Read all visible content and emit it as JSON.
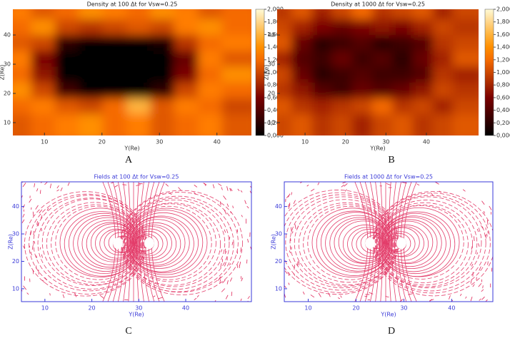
{
  "chart_data": [
    {
      "type": "heatmap",
      "label": "A",
      "title": "Density at 100 Δt for Vsw=0.25",
      "xlabel": "Y(Re)",
      "ylabel": "Z(Re)",
      "xlim": [
        4.5,
        46
      ],
      "ylim": [
        5.6,
        48.8
      ],
      "xticks": [
        10,
        20,
        30,
        40
      ],
      "yticks": [
        10,
        20,
        30,
        40
      ],
      "z": [
        [
          1.3,
          1.1,
          1.2,
          1.4,
          1.3,
          1.2,
          1.4,
          1.3,
          1.1,
          1.2
        ],
        [
          1.2,
          1.4,
          1.0,
          0.9,
          1.0,
          1.1,
          1.0,
          1.3,
          1.4,
          1.2
        ],
        [
          1.1,
          1.0,
          0.2,
          0.0,
          0.0,
          0.0,
          0.1,
          0.9,
          1.2,
          1.3
        ],
        [
          1.3,
          0.6,
          0.0,
          0.0,
          0.0,
          0.0,
          0.0,
          0.5,
          1.3,
          1.1
        ],
        [
          1.2,
          0.7,
          0.0,
          0.0,
          0.0,
          0.0,
          0.0,
          0.6,
          1.2,
          1.4
        ],
        [
          1.4,
          1.0,
          0.3,
          0.0,
          0.0,
          0.0,
          0.2,
          1.0,
          1.3,
          1.2
        ],
        [
          1.2,
          1.3,
          1.1,
          1.0,
          1.2,
          1.6,
          1.1,
          1.3,
          1.2,
          1.0
        ],
        [
          1.1,
          1.2,
          1.3,
          1.4,
          1.2,
          1.3,
          1.1,
          1.2,
          1.3,
          1.1
        ]
      ],
      "colorbar": {
        "lim": [
          0,
          2
        ],
        "ticks": [
          {
            "value": 2.0,
            "label": "2,000"
          },
          {
            "value": 1.8,
            "label": "1,800"
          },
          {
            "value": 1.6,
            "label": "1,600"
          },
          {
            "value": 1.4,
            "label": "1,400"
          },
          {
            "value": 1.2,
            "label": "1,200"
          },
          {
            "value": 1.0,
            "label": "1,000"
          },
          {
            "value": 0.8,
            "label": "0,800"
          },
          {
            "value": 0.6,
            "label": "0,600"
          },
          {
            "value": 0.4,
            "label": "0,400"
          },
          {
            "value": 0.2,
            "label": "0,200"
          },
          {
            "value": 0.0,
            "label": "0,000"
          }
        ]
      }
    },
    {
      "type": "heatmap",
      "label": "B",
      "title": "Density at 1000 Δt for Vsw=0.25",
      "xlabel": "Y(Re)",
      "ylabel": "Z(Re)",
      "xlim": [
        3.1,
        52.9
      ],
      "ylim": [
        5.6,
        48.8
      ],
      "xticks": [
        10,
        20,
        30,
        40
      ],
      "yticks": [
        10,
        20,
        30,
        40
      ],
      "z": [
        [
          0.9,
          1.1,
          0.8,
          1.0,
          1.2,
          0.9,
          1.0,
          1.1,
          0.8,
          1.0
        ],
        [
          1.0,
          0.8,
          0.6,
          0.5,
          0.6,
          0.7,
          0.6,
          0.8,
          1.0,
          0.9
        ],
        [
          1.1,
          0.5,
          0.2,
          0.3,
          0.4,
          0.2,
          0.3,
          0.4,
          0.9,
          1.0
        ],
        [
          0.8,
          0.4,
          0.3,
          0.5,
          0.3,
          0.4,
          0.2,
          0.5,
          0.8,
          1.1
        ],
        [
          1.0,
          0.5,
          0.2,
          0.3,
          0.4,
          0.3,
          0.3,
          0.4,
          0.9,
          0.8
        ],
        [
          0.9,
          0.7,
          0.4,
          0.3,
          0.5,
          0.4,
          0.5,
          0.7,
          1.0,
          0.9
        ],
        [
          1.1,
          0.9,
          0.8,
          0.9,
          1.0,
          1.2,
          0.9,
          1.0,
          0.8,
          1.0
        ],
        [
          1.0,
          1.1,
          0.9,
          1.0,
          0.8,
          1.0,
          1.1,
          0.9,
          1.0,
          1.1
        ]
      ],
      "colorbar": {
        "lim": [
          0,
          2
        ],
        "ticks": [
          {
            "value": 2.0,
            "label": "2,000"
          },
          {
            "value": 1.8,
            "label": "1,800"
          },
          {
            "value": 1.6,
            "label": "1,600"
          },
          {
            "value": 1.4,
            "label": "1,400"
          },
          {
            "value": 1.2,
            "label": "1,200"
          },
          {
            "value": 1.0,
            "label": "1,000"
          },
          {
            "value": 0.8,
            "label": "0,800"
          },
          {
            "value": 0.6,
            "label": "0,600"
          },
          {
            "value": 0.4,
            "label": "0,400"
          },
          {
            "value": 0.2,
            "label": "0,200"
          },
          {
            "value": 0.0,
            "label": "0,000"
          }
        ]
      }
    },
    {
      "type": "streamline",
      "label": "C",
      "title": "Fields at 100 Δt for Vsw=0.25",
      "xlabel": "Y(Re)",
      "ylabel": "Z(Re)",
      "xlim": [
        5,
        54
      ],
      "ylim": [
        5.3,
        49
      ],
      "xticks": [
        10,
        20,
        30,
        40
      ],
      "yticks": [
        10,
        20,
        30,
        40
      ],
      "color": "#e0285a",
      "axis_color": "#3a3ad8"
    },
    {
      "type": "streamline",
      "label": "D",
      "title": "Fields at 1000 Δt for Vsw=0.25",
      "xlabel": "Y(Re)",
      "ylabel": "Z(Re)",
      "xlim": [
        5,
        48.6
      ],
      "ylim": [
        5.3,
        49
      ],
      "xticks": [
        10,
        20,
        30,
        40
      ],
      "yticks": [
        10,
        20,
        30,
        40
      ],
      "color": "#e0285a",
      "axis_color": "#3a3ad8"
    }
  ]
}
